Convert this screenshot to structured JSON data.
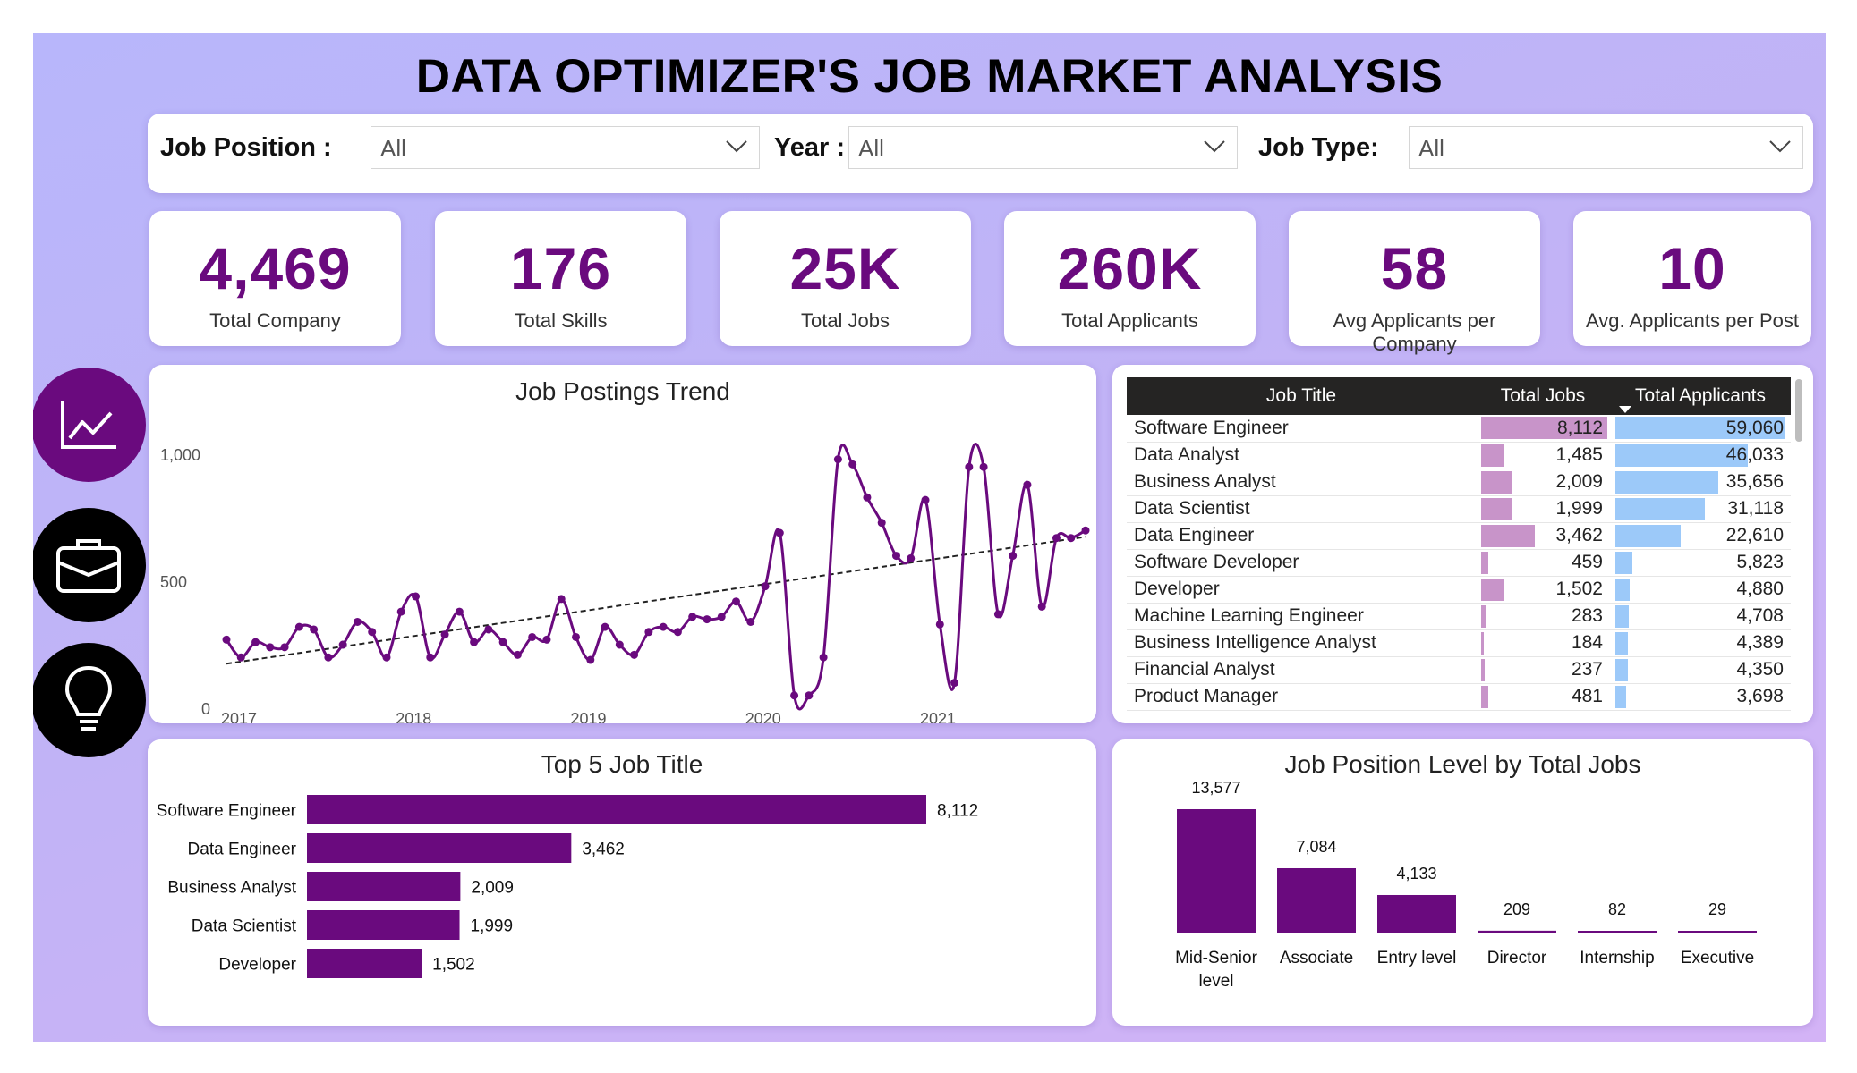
{
  "title": "DATA OPTIMIZER'S JOB MARKET ANALYSIS",
  "filters": [
    {
      "label": "Job Position :",
      "value": "All"
    },
    {
      "label": "Year :",
      "value": "All"
    },
    {
      "label": "Job Type:",
      "value": "All"
    }
  ],
  "kpis": [
    {
      "value": "4,469",
      "label": "Total Company"
    },
    {
      "value": "176",
      "label": "Total Skills"
    },
    {
      "value": "25K",
      "label": "Total Jobs"
    },
    {
      "value": "260K",
      "label": "Total Applicants"
    },
    {
      "value": "58",
      "label": "Avg Applicants per Company"
    },
    {
      "value": "10",
      "label": "Avg. Applicants per Post"
    }
  ],
  "side_icons": [
    "line-chart-icon",
    "briefcase-icon",
    "lightbulb-icon"
  ],
  "colors": {
    "accent": "#6a0a7e",
    "table_jobs_bar": "#c894c9",
    "table_applicants_bar": "#9cc9f9",
    "header": "#252423"
  },
  "chart_data": [
    {
      "type": "line",
      "title": "Job Postings Trend",
      "x_ticks": [
        "2017",
        "2018",
        "2019",
        "2020",
        "2021"
      ],
      "y_ticks": [
        "0",
        "500",
        "1,000"
      ],
      "ylim": [
        0,
        1000
      ],
      "x": [
        "2017-01",
        "2017-02",
        "2017-03",
        "2017-04",
        "2017-05",
        "2017-06",
        "2017-07",
        "2017-08",
        "2017-09",
        "2017-10",
        "2017-11",
        "2017-12",
        "2018-01",
        "2018-02",
        "2018-03",
        "2018-04",
        "2018-05",
        "2018-06",
        "2018-07",
        "2018-08",
        "2018-09",
        "2018-10",
        "2018-11",
        "2018-12",
        "2019-01",
        "2019-02",
        "2019-03",
        "2019-04",
        "2019-05",
        "2019-06",
        "2019-07",
        "2019-08",
        "2019-09",
        "2019-10",
        "2019-11",
        "2019-12",
        "2020-01",
        "2020-02",
        "2020-03",
        "2020-04",
        "2020-05",
        "2020-06",
        "2020-07",
        "2020-08",
        "2020-09",
        "2020-10",
        "2020-11",
        "2020-12",
        "2021-01",
        "2021-02",
        "2021-03",
        "2021-04",
        "2021-05",
        "2021-06",
        "2021-07",
        "2021-08",
        "2021-09",
        "2021-10",
        "2021-11",
        "2021-12"
      ],
      "values": [
        270,
        200,
        260,
        240,
        240,
        320,
        310,
        200,
        250,
        340,
        300,
        200,
        380,
        440,
        200,
        290,
        380,
        260,
        310,
        260,
        210,
        280,
        270,
        430,
        280,
        190,
        320,
        250,
        210,
        300,
        320,
        300,
        360,
        350,
        360,
        420,
        340,
        480,
        690,
        50,
        50,
        200,
        980,
        960,
        830,
        730,
        600,
        590,
        820,
        330,
        100,
        950,
        950,
        370,
        600,
        880,
        400,
        670,
        670,
        700
      ],
      "trend_line": {
        "start": 175,
        "end": 675
      }
    },
    {
      "type": "table",
      "columns": [
        "Job Title",
        "Total Jobs",
        "Total Applicants"
      ],
      "rows": [
        {
          "title": "Software Engineer",
          "jobs": 8112,
          "jobs_text": "8,112",
          "applicants": 59060,
          "applicants_text": "59,060"
        },
        {
          "title": "Data Analyst",
          "jobs": 1485,
          "jobs_text": "1,485",
          "applicants": 46033,
          "applicants_text": "46,033"
        },
        {
          "title": "Business Analyst",
          "jobs": 2009,
          "jobs_text": "2,009",
          "applicants": 35656,
          "applicants_text": "35,656"
        },
        {
          "title": "Data Scientist",
          "jobs": 1999,
          "jobs_text": "1,999",
          "applicants": 31118,
          "applicants_text": "31,118"
        },
        {
          "title": "Data Engineer",
          "jobs": 3462,
          "jobs_text": "3,462",
          "applicants": 22610,
          "applicants_text": "22,610"
        },
        {
          "title": "Software Developer",
          "jobs": 459,
          "jobs_text": "459",
          "applicants": 5823,
          "applicants_text": "5,823"
        },
        {
          "title": "Developer",
          "jobs": 1502,
          "jobs_text": "1,502",
          "applicants": 4880,
          "applicants_text": "4,880"
        },
        {
          "title": "Machine Learning Engineer",
          "jobs": 283,
          "jobs_text": "283",
          "applicants": 4708,
          "applicants_text": "4,708"
        },
        {
          "title": "Business Intelligence Analyst",
          "jobs": 184,
          "jobs_text": "184",
          "applicants": 4389,
          "applicants_text": "4,389"
        },
        {
          "title": "Financial Analyst",
          "jobs": 237,
          "jobs_text": "237",
          "applicants": 4350,
          "applicants_text": "4,350"
        },
        {
          "title": "Product Manager",
          "jobs": 481,
          "jobs_text": "481",
          "applicants": 3698,
          "applicants_text": "3,698"
        }
      ]
    },
    {
      "type": "bar",
      "orientation": "horizontal",
      "title": "Top 5 Job Title",
      "categories": [
        "Software Engineer",
        "Data Engineer",
        "Business Analyst",
        "Data Scientist",
        "Developer"
      ],
      "values": [
        8112,
        3462,
        2009,
        1999,
        1502
      ],
      "labels": [
        "8,112",
        "3,462",
        "2,009",
        "1,999",
        "1,502"
      ]
    },
    {
      "type": "bar",
      "title": "Job Position Level by Total Jobs",
      "categories": [
        [
          "Mid-Senior",
          "level"
        ],
        [
          "Associate"
        ],
        [
          "Entry level"
        ],
        [
          "Director"
        ],
        [
          "Internship"
        ],
        [
          "Executive"
        ]
      ],
      "values": [
        13577,
        7084,
        4133,
        209,
        82,
        29
      ],
      "labels": [
        "13,577",
        "7,084",
        "4,133",
        "209",
        "82",
        "29"
      ]
    }
  ]
}
